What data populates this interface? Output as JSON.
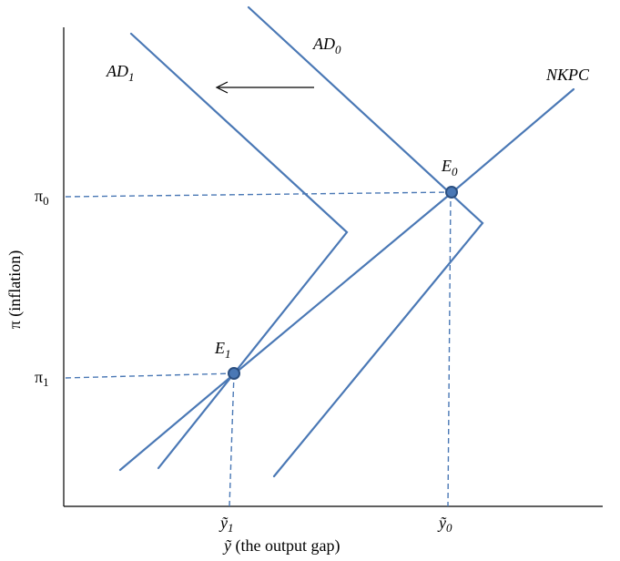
{
  "axes": {
    "y_label": "π (inflation)",
    "x_label_symbol": "ỹ",
    "x_label_text": " (the output gap)"
  },
  "curves": {
    "ad0": {
      "base": "AD",
      "sub": "0"
    },
    "ad1": {
      "base": "AD",
      "sub": "1"
    },
    "nkpc": {
      "label": "NKPC"
    }
  },
  "points": {
    "e0": {
      "base": "E",
      "sub": "0"
    },
    "e1": {
      "base": "E",
      "sub": "1"
    }
  },
  "ticks": {
    "pi0": {
      "base": "π",
      "sub": "0"
    },
    "pi1": {
      "base": "π",
      "sub": "1"
    },
    "y0": {
      "base": "ỹ",
      "sub": "0"
    },
    "y1": {
      "base": "ỹ",
      "sub": "1"
    }
  },
  "colors": {
    "curve": "#4a78b5",
    "axis": "#000000"
  }
}
